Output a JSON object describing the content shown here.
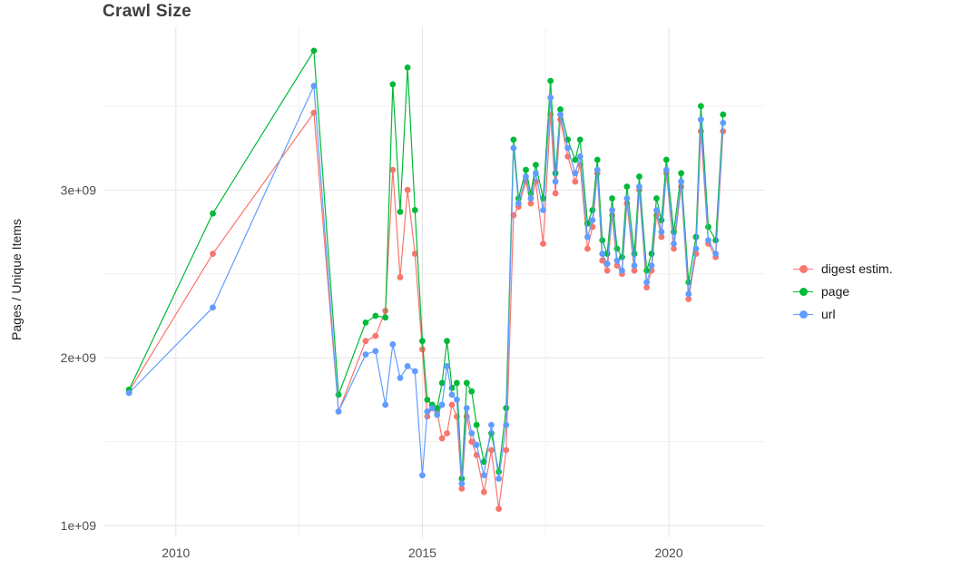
{
  "chart_data": {
    "type": "line",
    "title": "Crawl Size",
    "xlabel": "",
    "ylabel": "Pages / Unique Items",
    "legend_position": "right",
    "grid": true,
    "y_unit": "values are in billions (1e+09)",
    "xlim": [
      2008.55,
      2021.95
    ],
    "ylim": [
      0.93,
      3.97
    ],
    "x_ticks": [
      {
        "value": 2010,
        "label": "2010"
      },
      {
        "value": 2015,
        "label": "2015"
      },
      {
        "value": 2020,
        "label": "2020"
      }
    ],
    "y_ticks": [
      {
        "value": 1,
        "label": "1e+09"
      },
      {
        "value": 2,
        "label": "2e+09"
      },
      {
        "value": 3,
        "label": "3e+09"
      }
    ],
    "minor_x": [
      2012.5,
      2017.5
    ],
    "minor_y": [
      1.5,
      2.5,
      3.5
    ],
    "x": [
      2009.05,
      2010.75,
      2012.8,
      2013.3,
      2013.85,
      2014.05,
      2014.25,
      2014.4,
      2014.55,
      2014.7,
      2014.85,
      2015.0,
      2015.1,
      2015.2,
      2015.3,
      2015.4,
      2015.5,
      2015.6,
      2015.7,
      2015.8,
      2015.9,
      2016.0,
      2016.1,
      2016.25,
      2016.4,
      2016.55,
      2016.7,
      2016.85,
      2016.95,
      2017.1,
      2017.2,
      2017.3,
      2017.45,
      2017.6,
      2017.7,
      2017.8,
      2017.95,
      2018.1,
      2018.2,
      2018.35,
      2018.45,
      2018.55,
      2018.65,
      2018.75,
      2018.85,
      2018.95,
      2019.05,
      2019.15,
      2019.3,
      2019.4,
      2019.55,
      2019.65,
      2019.75,
      2019.85,
      2019.95,
      2020.1,
      2020.25,
      2020.4,
      2020.55,
      2020.65,
      2020.8,
      2020.95,
      2021.1
    ],
    "series": [
      {
        "name": "digest estim.",
        "color": "#F8766D",
        "values": [
          1.8,
          2.62,
          3.46,
          1.68,
          2.1,
          2.13,
          2.28,
          3.12,
          2.48,
          3.0,
          2.62,
          2.05,
          1.65,
          1.7,
          1.68,
          1.52,
          1.55,
          1.72,
          1.65,
          1.22,
          1.65,
          1.5,
          1.42,
          1.2,
          1.45,
          1.1,
          1.45,
          2.85,
          2.9,
          3.05,
          2.92,
          3.05,
          2.68,
          3.45,
          2.98,
          3.42,
          3.2,
          3.05,
          3.15,
          2.65,
          2.78,
          3.1,
          2.58,
          2.52,
          2.85,
          2.55,
          2.5,
          2.92,
          2.52,
          3.0,
          2.42,
          2.52,
          2.85,
          2.72,
          3.1,
          2.65,
          3.02,
          2.35,
          2.62,
          3.35,
          2.68,
          2.6,
          3.35
        ]
      },
      {
        "name": "page",
        "color": "#00BA38",
        "values": [
          1.81,
          2.86,
          3.83,
          1.78,
          2.21,
          2.25,
          2.24,
          3.63,
          2.87,
          3.73,
          2.88,
          2.1,
          1.75,
          1.72,
          1.7,
          1.85,
          2.1,
          1.82,
          1.85,
          1.28,
          1.85,
          1.8,
          1.6,
          1.38,
          1.55,
          1.32,
          1.7,
          3.3,
          2.95,
          3.12,
          2.98,
          3.15,
          2.95,
          3.65,
          3.1,
          3.48,
          3.3,
          3.18,
          3.3,
          2.8,
          2.88,
          3.18,
          2.7,
          2.62,
          2.95,
          2.65,
          2.6,
          3.02,
          2.62,
          3.08,
          2.52,
          2.62,
          2.95,
          2.82,
          3.18,
          2.75,
          3.1,
          2.45,
          2.72,
          3.5,
          2.78,
          2.7,
          3.45
        ]
      },
      {
        "name": "url",
        "color": "#619CFF",
        "values": [
          1.79,
          2.3,
          3.62,
          1.68,
          2.02,
          2.04,
          1.72,
          2.08,
          1.88,
          1.95,
          1.92,
          1.3,
          1.68,
          1.7,
          1.66,
          1.72,
          1.95,
          1.78,
          1.75,
          1.25,
          1.7,
          1.55,
          1.48,
          1.3,
          1.6,
          1.28,
          1.6,
          3.25,
          2.92,
          3.08,
          2.95,
          3.1,
          2.88,
          3.55,
          3.05,
          3.45,
          3.25,
          3.1,
          3.2,
          2.72,
          2.82,
          3.12,
          2.62,
          2.56,
          2.88,
          2.58,
          2.52,
          2.95,
          2.55,
          3.02,
          2.45,
          2.55,
          2.88,
          2.75,
          3.12,
          2.68,
          3.05,
          2.38,
          2.65,
          3.42,
          2.7,
          2.62,
          3.4
        ]
      }
    ],
    "style": {
      "grid_major_color": "#E4E4E4",
      "grid_minor_color": "#F1F1F1",
      "tick_label_color": "#4D4D4D",
      "title_color": "#3f3f3f",
      "background": "#ffffff"
    }
  }
}
